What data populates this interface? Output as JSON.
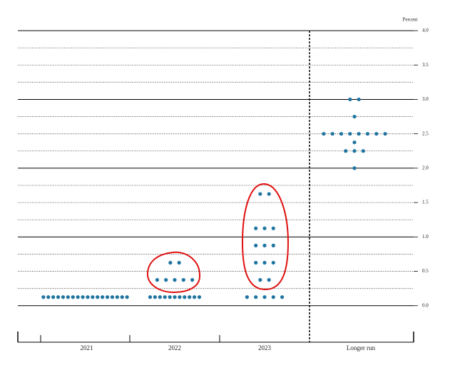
{
  "chart_data": {
    "type": "dot-plot",
    "y_label": "Percent",
    "categories": [
      "2021",
      "2022",
      "2023",
      "Longer run"
    ],
    "dots": [
      [
        0.125,
        0.125,
        0.125,
        0.125,
        0.125,
        0.125,
        0.125,
        0.125,
        0.125,
        0.125,
        0.125,
        0.125,
        0.125,
        0.125,
        0.125,
        0.125,
        0.125,
        0.125
      ],
      [
        0.125,
        0.125,
        0.125,
        0.125,
        0.125,
        0.125,
        0.125,
        0.125,
        0.125,
        0.125,
        0.125,
        0.375,
        0.375,
        0.375,
        0.375,
        0.375,
        0.625,
        0.625
      ],
      [
        0.125,
        0.125,
        0.125,
        0.125,
        0.125,
        0.375,
        0.375,
        0.625,
        0.625,
        0.625,
        0.875,
        0.875,
        0.875,
        1.125,
        1.125,
        1.125,
        1.625,
        1.625
      ],
      [
        2,
        2.25,
        2.25,
        2.25,
        2.375,
        2.5,
        2.5,
        2.5,
        2.5,
        2.5,
        2.5,
        2.5,
        2.5,
        2.75,
        3,
        3
      ]
    ],
    "color": "#1f74a0",
    "ylim": [
      -0.5,
      4.0
    ],
    "yticks": [
      {
        "value": 0,
        "label": "0.0"
      },
      0.5,
      {
        "value": 1,
        "label": "1.0"
      },
      1.5,
      {
        "value": 2,
        "label": "2.0"
      },
      2.5,
      {
        "value": 3,
        "label": "3.0"
      },
      3.5,
      {
        "value": 4,
        "label": "4.0"
      }
    ],
    "minor_yticks": [
      0.25,
      0.75,
      1.25,
      1.75,
      2.25,
      2.75,
      3.25,
      3.75
    ]
  }
}
